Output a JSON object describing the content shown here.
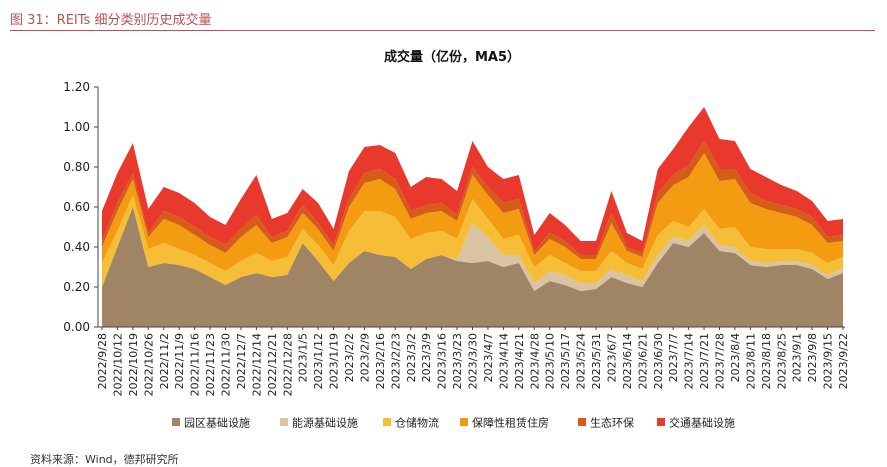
{
  "figure": {
    "caption": "图 31：REITs 细分类别历史成交量",
    "source": "资料来源：Wind，德邦研究所"
  },
  "colors": {
    "caption": "#c0504d",
    "series": [
      "#a08466",
      "#d9c3a0",
      "#f6be37",
      "#f39c12",
      "#d55c19",
      "#e8392c"
    ]
  },
  "chart_data": {
    "type": "area",
    "stacked": true,
    "title": "成交量（亿份，MA5）",
    "xlabel": "",
    "ylabel": "",
    "ylim": [
      0,
      1.2
    ],
    "yticks": [
      "0.00",
      "0.20",
      "0.40",
      "0.60",
      "0.80",
      "1.00",
      "1.20"
    ],
    "legend_position": "bottom",
    "x_tick_labels": [
      "2022/9/28",
      "2022/10/12",
      "2022/10/19",
      "2022/10/26",
      "2022/11/2",
      "2022/11/9",
      "2022/11/16",
      "2022/11/23",
      "2022/11/30",
      "2022/12/7",
      "2022/12/14",
      "2022/12/21",
      "2022/12/28",
      "2023/1/5",
      "2023/1/12",
      "2023/1/19",
      "2023/2/2",
      "2023/2/9",
      "2023/2/16",
      "2023/2/23",
      "2023/3/2",
      "2023/3/9",
      "2023/3/16",
      "2023/3/23",
      "2023/3/30",
      "2023/4/7",
      "2023/4/14",
      "2023/4/21",
      "2023/4/28",
      "2023/5/10",
      "2023/5/17",
      "2023/5/24",
      "2023/5/31",
      "2023/6/7",
      "2023/6/14",
      "2023/6/21",
      "2023/6/30",
      "2023/7/7",
      "2023/7/14",
      "2023/7/21",
      "2023/7/28",
      "2023/8/4",
      "2023/8/11",
      "2023/8/18",
      "2023/8/25",
      "2023/9/1",
      "2023/9/8",
      "2023/9/15",
      "2023/9/22"
    ],
    "series": [
      {
        "name": "园区基础设施",
        "values": [
          0.2,
          0.4,
          0.6,
          0.3,
          0.32,
          0.31,
          0.29,
          0.25,
          0.21,
          0.25,
          0.27,
          0.25,
          0.26,
          0.42,
          0.33,
          0.23,
          0.32,
          0.38,
          0.36,
          0.35,
          0.29,
          0.34,
          0.36,
          0.33,
          0.32,
          0.33,
          0.3,
          0.32,
          0.18,
          0.23,
          0.21,
          0.18,
          0.19,
          0.25,
          0.22,
          0.2,
          0.32,
          0.42,
          0.4,
          0.47,
          0.38,
          0.37,
          0.31,
          0.3,
          0.31,
          0.31,
          0.29,
          0.24,
          0.27
        ]
      },
      {
        "name": "能源基础设施",
        "values": [
          0.0,
          0.0,
          0.0,
          0.0,
          0.0,
          0.0,
          0.0,
          0.0,
          0.0,
          0.0,
          0.0,
          0.0,
          0.0,
          0.0,
          0.0,
          0.0,
          0.0,
          0.0,
          0.0,
          0.0,
          0.0,
          0.0,
          0.0,
          0.01,
          0.2,
          0.12,
          0.06,
          0.04,
          0.04,
          0.05,
          0.05,
          0.04,
          0.03,
          0.04,
          0.04,
          0.03,
          0.04,
          0.03,
          0.03,
          0.04,
          0.03,
          0.03,
          0.02,
          0.02,
          0.02,
          0.02,
          0.02,
          0.02,
          0.02
        ]
      },
      {
        "name": "仓储物流",
        "values": [
          0.12,
          0.08,
          0.06,
          0.09,
          0.1,
          0.08,
          0.07,
          0.07,
          0.07,
          0.08,
          0.1,
          0.08,
          0.09,
          0.07,
          0.08,
          0.08,
          0.16,
          0.2,
          0.22,
          0.2,
          0.15,
          0.13,
          0.12,
          0.1,
          0.12,
          0.09,
          0.08,
          0.1,
          0.08,
          0.08,
          0.06,
          0.06,
          0.06,
          0.09,
          0.06,
          0.06,
          0.1,
          0.08,
          0.07,
          0.08,
          0.08,
          0.1,
          0.07,
          0.07,
          0.06,
          0.06,
          0.06,
          0.06,
          0.06
        ]
      },
      {
        "name": "保障性租赁住房",
        "values": [
          0.08,
          0.1,
          0.08,
          0.06,
          0.12,
          0.12,
          0.1,
          0.09,
          0.09,
          0.12,
          0.14,
          0.09,
          0.1,
          0.08,
          0.08,
          0.07,
          0.12,
          0.14,
          0.16,
          0.14,
          0.1,
          0.1,
          0.1,
          0.09,
          0.12,
          0.12,
          0.13,
          0.13,
          0.06,
          0.08,
          0.08,
          0.06,
          0.06,
          0.14,
          0.06,
          0.06,
          0.16,
          0.18,
          0.25,
          0.28,
          0.24,
          0.24,
          0.22,
          0.2,
          0.18,
          0.16,
          0.14,
          0.1,
          0.08
        ]
      },
      {
        "name": "生态环保",
        "values": [
          0.03,
          0.04,
          0.03,
          0.02,
          0.04,
          0.04,
          0.04,
          0.04,
          0.04,
          0.04,
          0.05,
          0.03,
          0.03,
          0.04,
          0.03,
          0.03,
          0.04,
          0.05,
          0.05,
          0.05,
          0.04,
          0.04,
          0.04,
          0.03,
          0.04,
          0.04,
          0.05,
          0.05,
          0.02,
          0.03,
          0.03,
          0.02,
          0.02,
          0.05,
          0.02,
          0.02,
          0.05,
          0.05,
          0.06,
          0.06,
          0.06,
          0.05,
          0.05,
          0.04,
          0.04,
          0.04,
          0.04,
          0.03,
          0.03
        ]
      },
      {
        "name": "交通基础设施",
        "values": [
          0.15,
          0.15,
          0.15,
          0.12,
          0.12,
          0.12,
          0.12,
          0.1,
          0.1,
          0.15,
          0.2,
          0.09,
          0.09,
          0.08,
          0.1,
          0.08,
          0.14,
          0.13,
          0.12,
          0.13,
          0.12,
          0.14,
          0.12,
          0.12,
          0.13,
          0.1,
          0.12,
          0.12,
          0.08,
          0.1,
          0.08,
          0.07,
          0.07,
          0.11,
          0.07,
          0.06,
          0.12,
          0.13,
          0.19,
          0.17,
          0.15,
          0.14,
          0.12,
          0.12,
          0.1,
          0.09,
          0.08,
          0.08,
          0.08
        ]
      }
    ]
  }
}
